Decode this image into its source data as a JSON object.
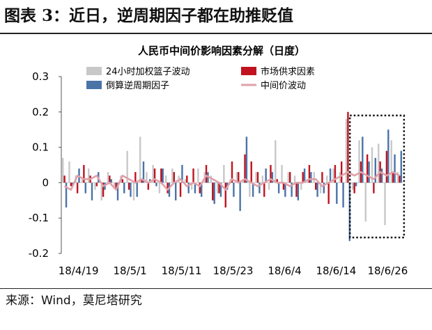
{
  "figure": {
    "heading": "图表 3：近日，逆周期因子都在助推贬值",
    "source": "来源：Wind，莫尼塔研究"
  },
  "chart_data": {
    "type": "bar",
    "title": "人民币中间价影响因素分解（日度）",
    "xlabel": "",
    "ylabel": "",
    "ylim": [
      -0.2,
      0.3
    ],
    "yticks": [
      0.3,
      0.2,
      0.1,
      0,
      -0.1,
      -0.2
    ],
    "ytick_labels": [
      "0.3",
      "0.2",
      "0.1",
      "0",
      "-0.1",
      "-0.2"
    ],
    "xtick_labels": [
      "18/4/19",
      "18/5/1",
      "18/5/11",
      "18/5/23",
      "18/6/4",
      "18/6/14",
      "18/6/26"
    ],
    "xtick_index": [
      0,
      8,
      16,
      24,
      32,
      40,
      48
    ],
    "legend": {
      "placement": "top",
      "columns": 2
    },
    "highlight_box": {
      "style": "dotted",
      "start_index": 45,
      "end_index": 52
    },
    "colors": {
      "basket": "#c8c8c8",
      "market": "#c0131f",
      "countercyclical": "#4a73a8",
      "midpoint": "#e0a0a8"
    },
    "series": [
      {
        "name": "24小时加权篮子波动",
        "type": "bar",
        "values": [
          0.07,
          0.06,
          0.02,
          0.01,
          0.04,
          -0.02,
          -0.05,
          0.03,
          -0.01,
          0.02,
          0.09,
          -0.05,
          0.13,
          0.03,
          0.05,
          -0.03,
          0.02,
          0.04,
          0.02,
          0.01,
          -0.02,
          0.04,
          0.03,
          0.02,
          -0.03,
          0.05,
          0.01,
          0.03,
          0.01,
          -0.04,
          0.03,
          0.02,
          -0.02,
          0.12,
          0.05,
          0.03,
          0.02,
          -0.02,
          0.01,
          0.03,
          -0.03,
          0.02,
          0.04,
          0.03,
          0.18,
          -0.02,
          0.12,
          -0.11,
          0.1,
          0.11,
          -0.12,
          0.12,
          0.03
        ]
      },
      {
        "name": "市场供求因素",
        "type": "bar",
        "values": [
          0.02,
          -0.01,
          -0.03,
          0.05,
          0.02,
          -0.01,
          -0.04,
          0.02,
          -0.02,
          0.01,
          -0.02,
          0.03,
          0.01,
          -0.02,
          0.04,
          0.04,
          -0.03,
          0.03,
          -0.04,
          0.02,
          0.04,
          -0.03,
          0.05,
          -0.05,
          -0.03,
          -0.07,
          0.06,
          0.03,
          0.08,
          0.06,
          0.03,
          -0.04,
          0.05,
          0.01,
          -0.02,
          0.03,
          -0.04,
          0.03,
          0.05,
          -0.02,
          0.03,
          -0.06,
          0.05,
          0.06,
          0.2,
          -0.03,
          0.06,
          0.08,
          -0.03,
          0.06,
          0.09,
          0.03,
          0.02
        ]
      },
      {
        "name": "倒算逆周期因子",
        "type": "bar",
        "values": [
          -0.07,
          -0.01,
          0.04,
          -0.03,
          -0.05,
          0.03,
          -0.02,
          0.01,
          -0.05,
          -0.03,
          -0.04,
          -0.04,
          0.06,
          0.01,
          -0.01,
          0.04,
          -0.04,
          -0.05,
          0.05,
          -0.03,
          -0.03,
          -0.04,
          0.03,
          -0.06,
          -0.04,
          -0.02,
          -0.04,
          -0.08,
          0.13,
          -0.04,
          -0.03,
          0.04,
          0.03,
          -0.03,
          -0.04,
          -0.04,
          -0.05,
          0.04,
          0.03,
          -0.04,
          -0.03,
          0.04,
          -0.06,
          -0.07,
          -0.165,
          -0.01,
          0.13,
          0.06,
          0.07,
          0.04,
          0.15,
          0.08,
          0.09
        ]
      },
      {
        "name": "中间价波动",
        "type": "line",
        "values": [
          -0.01,
          -0.02,
          0.02,
          0.01,
          0.01,
          0.02,
          -0.01,
          0.0,
          -0.02,
          0.02,
          0.01,
          0.0,
          0.01,
          0.0,
          0.01,
          0.0,
          -0.02,
          0.0,
          0.01,
          -0.01,
          0.0,
          -0.01,
          0.02,
          0.01,
          0.0,
          -0.02,
          0.01,
          0.0,
          0.01,
          0.0,
          -0.01,
          0.0,
          0.01,
          0.0,
          0.0,
          -0.01,
          0.0,
          0.0,
          0.01,
          0.01,
          -0.01,
          0.0,
          0.01,
          0.02,
          0.03,
          0.02,
          0.03,
          0.02,
          0.01,
          0.03,
          0.02,
          0.03,
          0.02
        ]
      }
    ]
  }
}
